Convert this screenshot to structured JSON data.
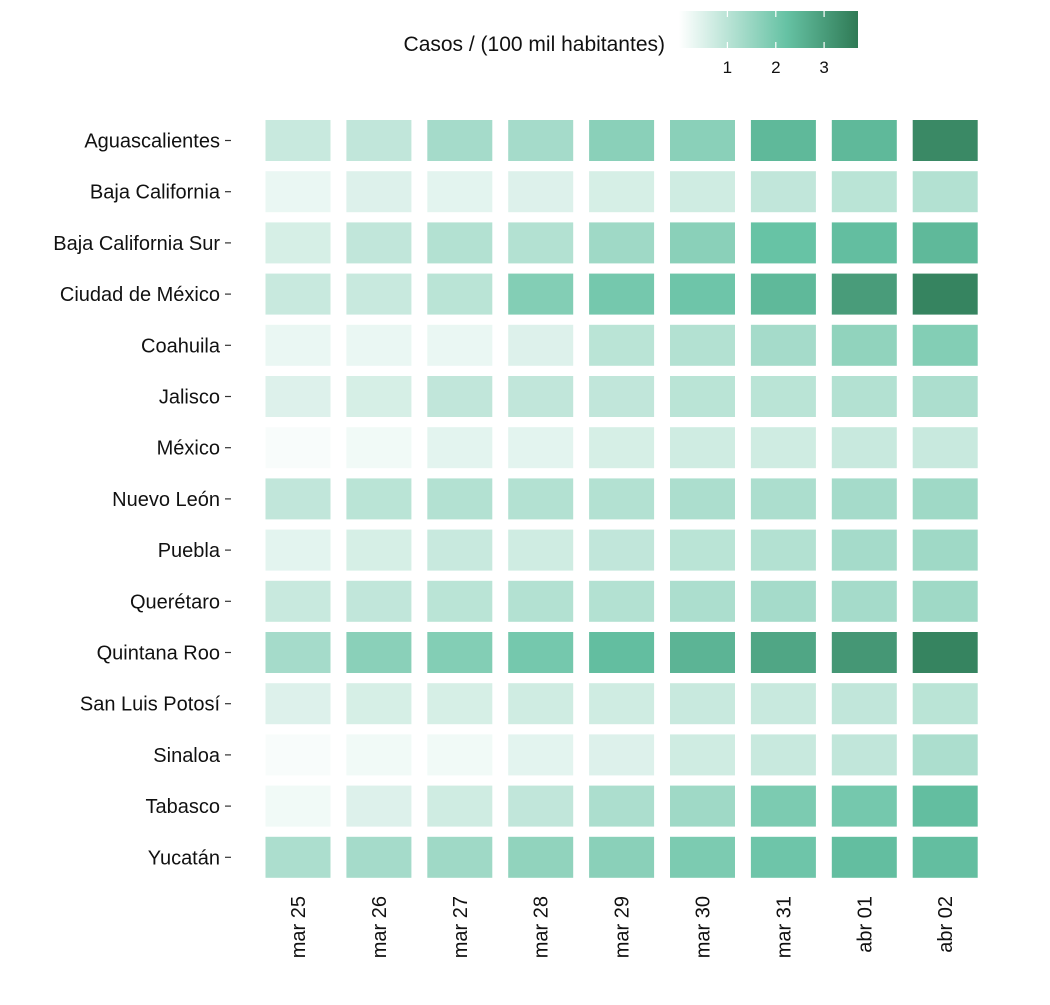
{
  "chart_data": {
    "type": "heatmap",
    "title": "",
    "xlabel": "",
    "ylabel": "",
    "legend": {
      "title": "Casos / (100 mil habitantes)",
      "placement": "top-right",
      "range": [
        0,
        3.7
      ],
      "ticks": [
        "1",
        "2",
        "3"
      ],
      "tick_values": [
        1,
        2,
        3
      ],
      "color_low": "#ffffff",
      "color_mid": "#66c2a4",
      "color_high": "#2f7a55"
    },
    "x_categories": [
      "mar 25",
      "mar 26",
      "mar 27",
      "mar 28",
      "mar 29",
      "mar 30",
      "mar 31",
      "abr 01",
      "abr 02"
    ],
    "y_categories": [
      "Aguascalientes",
      "Baja California",
      "Baja California Sur",
      "Ciudad de México",
      "Coahuila",
      "Jalisco",
      "México",
      "Nuevo León",
      "Puebla",
      "Querétaro",
      "Quintana Roo",
      "San Luis Potosí",
      "Sinaloa",
      "Tabasco",
      "Yucatán"
    ],
    "values": [
      [
        0.8,
        0.9,
        1.3,
        1.3,
        1.7,
        1.7,
        2.4,
        2.4,
        3.4
      ],
      [
        0.3,
        0.5,
        0.4,
        0.5,
        0.6,
        0.7,
        0.9,
        1.0,
        1.1
      ],
      [
        0.6,
        0.9,
        1.1,
        1.1,
        1.4,
        1.7,
        2.2,
        2.3,
        2.4
      ],
      [
        0.8,
        0.8,
        1.0,
        1.8,
        2.0,
        2.1,
        2.4,
        3.0,
        3.5
      ],
      [
        0.3,
        0.3,
        0.3,
        0.5,
        1.0,
        1.1,
        1.3,
        1.6,
        1.8
      ],
      [
        0.5,
        0.6,
        0.9,
        0.9,
        0.9,
        1.0,
        1.0,
        1.1,
        1.2
      ],
      [
        0.1,
        0.2,
        0.4,
        0.4,
        0.6,
        0.7,
        0.7,
        0.8,
        0.8
      ],
      [
        0.9,
        1.0,
        1.1,
        1.1,
        1.1,
        1.2,
        1.2,
        1.3,
        1.4
      ],
      [
        0.4,
        0.6,
        0.8,
        0.7,
        0.9,
        1.0,
        1.1,
        1.3,
        1.4
      ],
      [
        0.8,
        0.9,
        1.0,
        1.1,
        1.1,
        1.2,
        1.3,
        1.3,
        1.4
      ],
      [
        1.3,
        1.7,
        1.8,
        2.0,
        2.3,
        2.5,
        2.8,
        3.1,
        3.5
      ],
      [
        0.5,
        0.6,
        0.6,
        0.7,
        0.7,
        0.8,
        0.8,
        0.9,
        1.0
      ],
      [
        0.1,
        0.2,
        0.2,
        0.4,
        0.5,
        0.7,
        0.8,
        0.9,
        1.2
      ],
      [
        0.2,
        0.5,
        0.7,
        0.9,
        1.2,
        1.4,
        1.9,
        2.0,
        2.3
      ],
      [
        1.2,
        1.3,
        1.4,
        1.6,
        1.7,
        1.9,
        2.1,
        2.3,
        2.3
      ]
    ],
    "grid": false
  }
}
